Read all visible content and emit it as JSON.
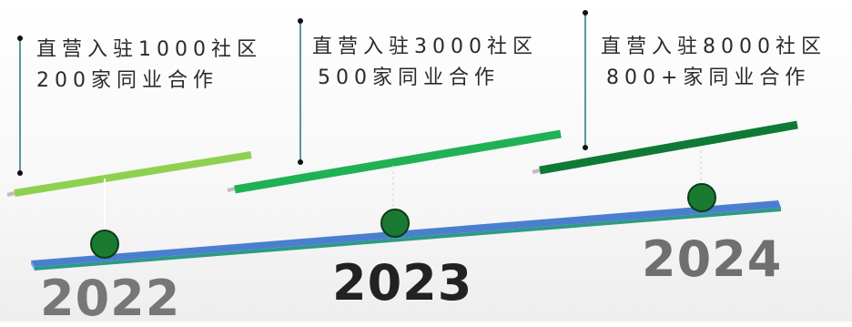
{
  "milestones": [
    {
      "year": "2022",
      "line1": "直营入驻1000社区",
      "line2": "200家同业合作"
    },
    {
      "year": "2023",
      "line1": "直营入驻3000社区",
      "line2": "500家同业合作"
    },
    {
      "year": "2024",
      "line1": "直营入驻8000社区",
      "line2": "800+家同业合作"
    }
  ],
  "colors": {
    "bar_2022": "#8fd14f",
    "bar_2023": "#1fb155",
    "bar_2024": "#0f7a35",
    "marker": "#1a7a32",
    "axis": "#3a8fb0",
    "year_2022": "#777777",
    "year_2023": "#222222",
    "year_2024": "#6f6f6f"
  }
}
